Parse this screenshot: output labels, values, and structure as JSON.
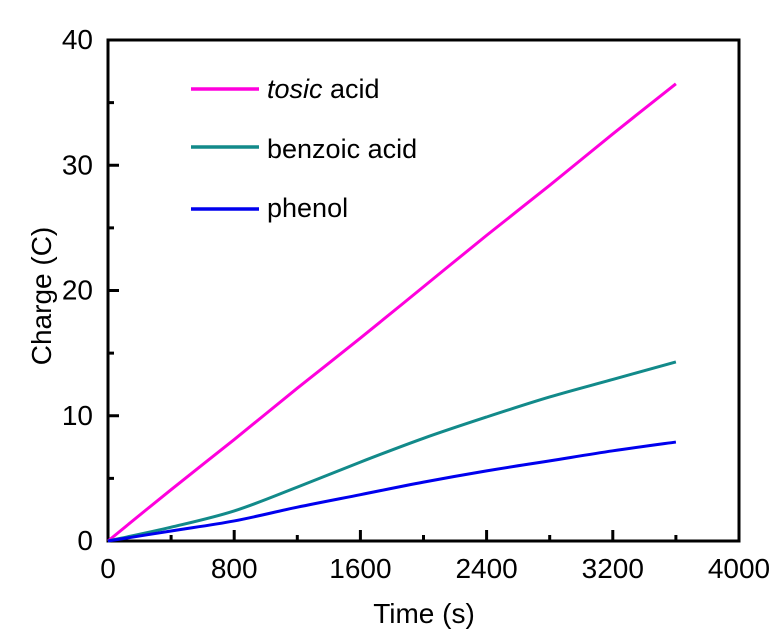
{
  "figure": {
    "background_color": "#FFFFFF",
    "axis_color": "#000000"
  },
  "chart_data": {
    "type": "line",
    "title": "",
    "xlabel": "Time (s)",
    "ylabel": "Charge (C)",
    "xlim": [
      0,
      4000
    ],
    "ylim": [
      0,
      40
    ],
    "grid": false,
    "legend_position": "upper-left-inside",
    "x_major_ticks": [
      0,
      800,
      1600,
      2400,
      3200,
      4000
    ],
    "x_minor_ticks": [
      400,
      1200,
      2000,
      2800,
      3600
    ],
    "y_major_ticks": [
      0,
      10,
      20,
      30,
      40
    ],
    "y_minor_ticks": [
      5,
      15,
      25,
      35
    ],
    "x": [
      0,
      400,
      800,
      1200,
      1600,
      2000,
      2400,
      2800,
      3200,
      3600
    ],
    "series": [
      {
        "name": "tosic acid",
        "label_italic_part": "tosic",
        "label_regular_part": " acid",
        "color": "#FF00DD",
        "values": [
          0,
          4.1,
          8.1,
          12.2,
          16.2,
          20.3,
          24.4,
          28.4,
          32.5,
          36.5
        ]
      },
      {
        "name": "benzoic acid",
        "label_italic_part": "",
        "label_regular_part": "benzoic acid",
        "color": "#128A8A",
        "values": [
          0,
          1.1,
          2.4,
          4.3,
          6.3,
          8.2,
          9.9,
          11.5,
          12.9,
          14.3
        ]
      },
      {
        "name": "phenol",
        "label_italic_part": "",
        "label_regular_part": "phenol",
        "color": "#0000EE",
        "values": [
          0,
          0.8,
          1.6,
          2.7,
          3.7,
          4.7,
          5.6,
          6.4,
          7.2,
          7.9
        ]
      }
    ]
  }
}
